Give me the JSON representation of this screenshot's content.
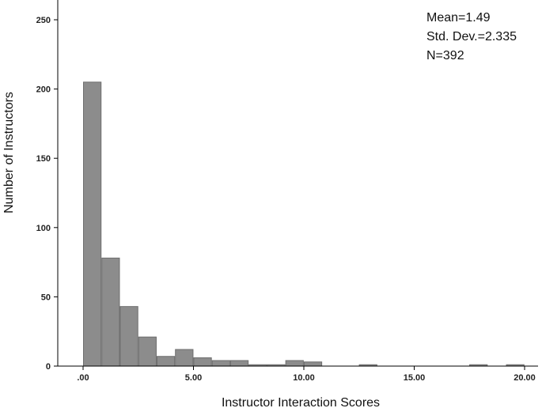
{
  "chart_data": {
    "type": "bar",
    "title": "",
    "xlabel": "Instructor Interaction Scores",
    "ylabel": "Number of Instructors",
    "xlim": [
      -1,
      20
    ],
    "ylim": [
      0,
      262
    ],
    "x_ticks": [
      0,
      5,
      10,
      15,
      20
    ],
    "x_tick_labels": [
      ".00",
      "5.00",
      "10.00",
      "15.00",
      "20.00"
    ],
    "y_ticks": [
      0,
      50,
      100,
      150,
      200,
      250
    ],
    "y_tick_labels": [
      "0",
      "50",
      "100",
      "150",
      "200",
      "250"
    ],
    "bin_width": 0.833,
    "bin_start": 0,
    "values": [
      205,
      78,
      43,
      21,
      7,
      12,
      6,
      4,
      4,
      1,
      1,
      4,
      3,
      0,
      0,
      1,
      0,
      0,
      0,
      0,
      0,
      1,
      0,
      1
    ],
    "grid": false,
    "stats": {
      "mean": "Mean=1.49",
      "std": "Std. Dev.=2.335",
      "n": "N=392"
    }
  }
}
